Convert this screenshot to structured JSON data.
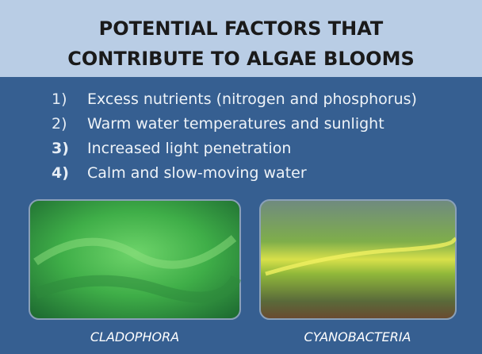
{
  "header": {
    "title_lines": [
      "POTENTIAL FACTORS THAT",
      "CONTRIBUTE TO ALGAE BLOOMS"
    ]
  },
  "list": [
    {
      "number": "1)",
      "text": "Excess nutrients (nitrogen and phosphorus)"
    },
    {
      "number": "2)",
      "text": "Warm water temperatures and sunlight"
    },
    {
      "number": "3)",
      "text": "Increased light penetration"
    },
    {
      "number": "4)",
      "text": "Calm and slow-moving water"
    }
  ],
  "images": [
    {
      "caption": "CLADOPHORA"
    },
    {
      "caption": "CYANOBACTERIA"
    }
  ]
}
